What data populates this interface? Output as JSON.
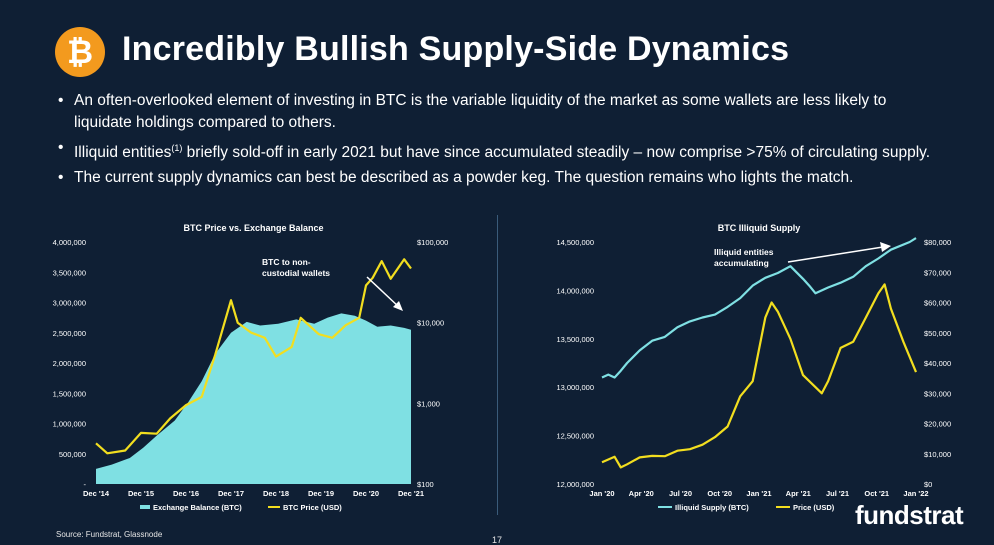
{
  "slide": {
    "logo_glyph": "₿",
    "logo_icon": "bitcoin-icon",
    "title": "Incredibly Bullish Supply-Side Dynamics",
    "bullets": [
      "An often-overlooked element of investing in BTC is the variable liquidity of the market as some wallets are less likely to liquidate holdings compared to others.",
      "Illiquid entities",
      "The current supply dynamics can best be described as a powder keg. The question remains who lights the match."
    ],
    "bullet2_sup": "(1)",
    "bullet2_rest": " briefly sold-off in early 2021 but have since accumulated steadily – now comprise >75% of circulating supply.",
    "source": "Source: Fundstrat, Glassnode",
    "page_number": "17",
    "brand": "fundstrat"
  },
  "colors": {
    "background": "#0f1f34",
    "cyan": "#7fe0e3",
    "yellow": "#f2de1f",
    "logo": "#f39a1e"
  },
  "chart_data": [
    {
      "type": "area",
      "title": "BTC Price vs. Exchange Balance",
      "x_ticks": [
        "Dec '14",
        "Dec '15",
        "Dec '16",
        "Dec '17",
        "Dec '18",
        "Dec '19",
        "Dec '20",
        "Dec '21"
      ],
      "y_left_ticks": [
        "4,000,000",
        "3,500,000",
        "3,000,000",
        "2,500,000",
        "2,000,000",
        "1,500,000",
        "1,000,000",
        "500,000",
        "-"
      ],
      "y_left_lim": [
        0,
        4000000
      ],
      "y_right_ticks": [
        "$100,000",
        "$10,000",
        "$1,000",
        "$100"
      ],
      "y_right_scale": "log",
      "y_right_lim": [
        100,
        100000
      ],
      "annotation": "BTC to non-custodial wallets",
      "annotation_lines": [
        "BTC to non-",
        "custodial wallets"
      ],
      "legend": [
        "Exchange Balance (BTC)",
        "BTC Price (USD)"
      ],
      "series": [
        {
          "name": "Exchange Balance (BTC)",
          "kind": "area",
          "x": [
            2014.95,
            2015.3,
            2015.7,
            2016.0,
            2016.3,
            2016.7,
            2017.0,
            2017.3,
            2017.6,
            2017.95,
            2018.3,
            2018.6,
            2019.0,
            2019.4,
            2019.8,
            2020.1,
            2020.4,
            2020.7,
            2020.95,
            2021.2,
            2021.5,
            2021.8,
            2021.95
          ],
          "values": [
            250000,
            320000,
            430000,
            600000,
            800000,
            1050000,
            1350000,
            1700000,
            2150000,
            2500000,
            2680000,
            2620000,
            2650000,
            2720000,
            2650000,
            2750000,
            2820000,
            2780000,
            2700000,
            2600000,
            2620000,
            2580000,
            2550000
          ]
        },
        {
          "name": "BTC Price (USD)",
          "kind": "line",
          "x": [
            2014.95,
            2015.2,
            2015.6,
            2015.95,
            2016.3,
            2016.6,
            2016.95,
            2017.3,
            2017.6,
            2017.95,
            2018.1,
            2018.4,
            2018.7,
            2018.95,
            2019.3,
            2019.5,
            2019.9,
            2020.2,
            2020.5,
            2020.8,
            2020.95,
            2021.1,
            2021.3,
            2021.5,
            2021.8,
            2021.95
          ],
          "values": [
            320,
            240,
            260,
            430,
            420,
            650,
            950,
            1200,
            4000,
            19000,
            10000,
            7500,
            6500,
            3800,
            5000,
            11500,
            7200,
            6500,
            9300,
            11500,
            29000,
            36000,
            58000,
            35000,
            61000,
            47000
          ]
        }
      ]
    },
    {
      "type": "line",
      "title": "BTC Illiquid Supply",
      "x_ticks": [
        "Jan '20",
        "Apr '20",
        "Jul '20",
        "Oct '20",
        "Jan '21",
        "Apr '21",
        "Jul '21",
        "Oct '21",
        "Jan '22"
      ],
      "y_left_ticks": [
        "14,500,000",
        "14,000,000",
        "13,500,000",
        "13,000,000",
        "12,500,000",
        "12,000,000"
      ],
      "y_left_lim": [
        12000000,
        14500000
      ],
      "y_right_ticks": [
        "$80,000",
        "$70,000",
        "$60,000",
        "$50,000",
        "$40,000",
        "$30,000",
        "$20,000",
        "$10,000",
        "$0"
      ],
      "y_right_lim": [
        0,
        80000
      ],
      "annotation": "Illiquid entities accumulating",
      "annotation_lines": [
        "Illiquid entities",
        "accumulating"
      ],
      "legend": [
        "Illiquid Supply (BTC)",
        "Price (USD)"
      ],
      "series": [
        {
          "name": "Illiquid Supply (BTC)",
          "kind": "line",
          "x": [
            0,
            0.5,
            1,
            1.5,
            2,
            3,
            4,
            5,
            6,
            7,
            8,
            9,
            10,
            11,
            12,
            13,
            14,
            15,
            16,
            16.5,
            17,
            18,
            19,
            20,
            21,
            22,
            23,
            24.5,
            25
          ],
          "values": [
            13100000,
            13130000,
            13100000,
            13170000,
            13250000,
            13380000,
            13480000,
            13520000,
            13620000,
            13680000,
            13720000,
            13750000,
            13830000,
            13920000,
            14050000,
            14130000,
            14180000,
            14250000,
            14120000,
            14050000,
            13970000,
            14030000,
            14080000,
            14140000,
            14250000,
            14330000,
            14420000,
            14500000,
            14540000
          ]
        },
        {
          "name": "Price (USD)",
          "kind": "line",
          "x": [
            0,
            1,
            1.5,
            2,
            3,
            4,
            5,
            6,
            7,
            8,
            9,
            10,
            10.5,
            11,
            12,
            13,
            13.5,
            14,
            15,
            16,
            17,
            17.5,
            18,
            19,
            20,
            21,
            22,
            22.5,
            23,
            24,
            25
          ],
          "values": [
            7200,
            9000,
            5500,
            6500,
            8800,
            9300,
            9200,
            11000,
            11500,
            13000,
            15500,
            19000,
            24000,
            29000,
            34000,
            55000,
            60000,
            57000,
            48000,
            36000,
            32000,
            30000,
            34000,
            45000,
            47000,
            55000,
            63000,
            66000,
            58000,
            47000,
            37000
          ]
        }
      ]
    }
  ]
}
